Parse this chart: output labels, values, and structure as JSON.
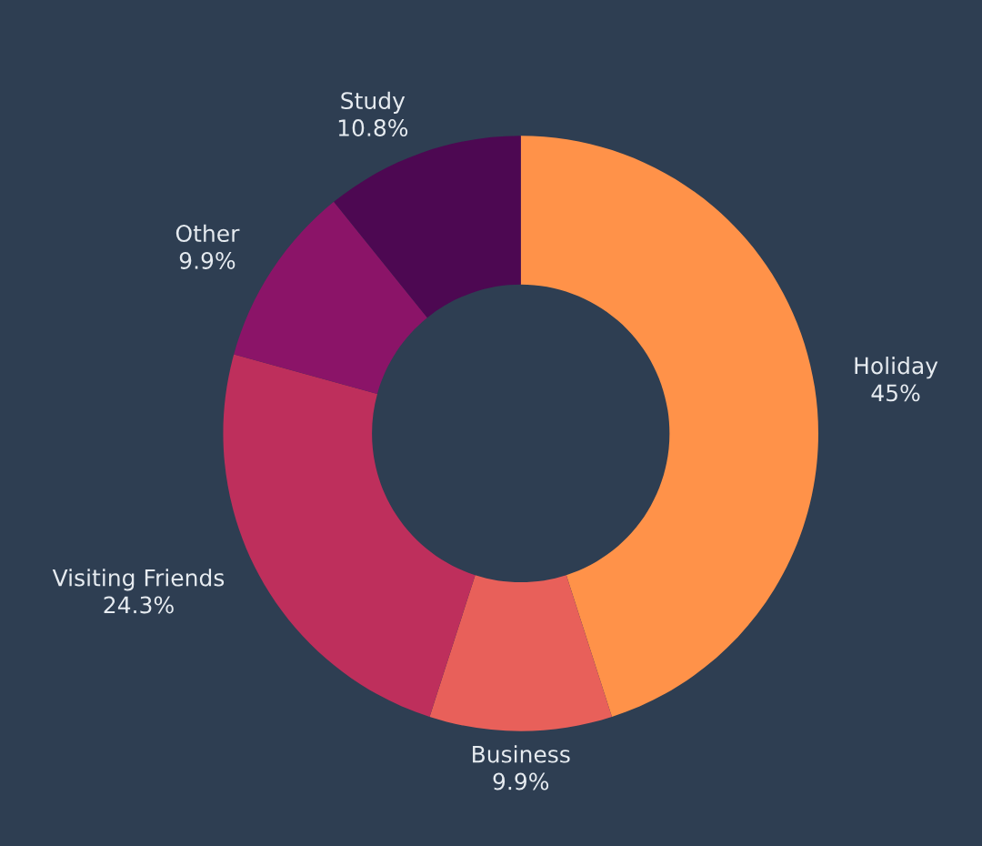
{
  "chart_data": {
    "type": "donut",
    "categories": [
      "Holiday",
      "Business",
      "Visiting Friends",
      "Other",
      "Study"
    ],
    "values": [
      45,
      9.9,
      24.3,
      9.9,
      10.8
    ],
    "value_labels": [
      "45%",
      "9.9%",
      "24.3%",
      "9.9%",
      "10.8%"
    ],
    "colors": [
      "#ff9249",
      "#e8605a",
      "#be2f5c",
      "#8b1468",
      "#4d0852"
    ],
    "legend": false
  }
}
